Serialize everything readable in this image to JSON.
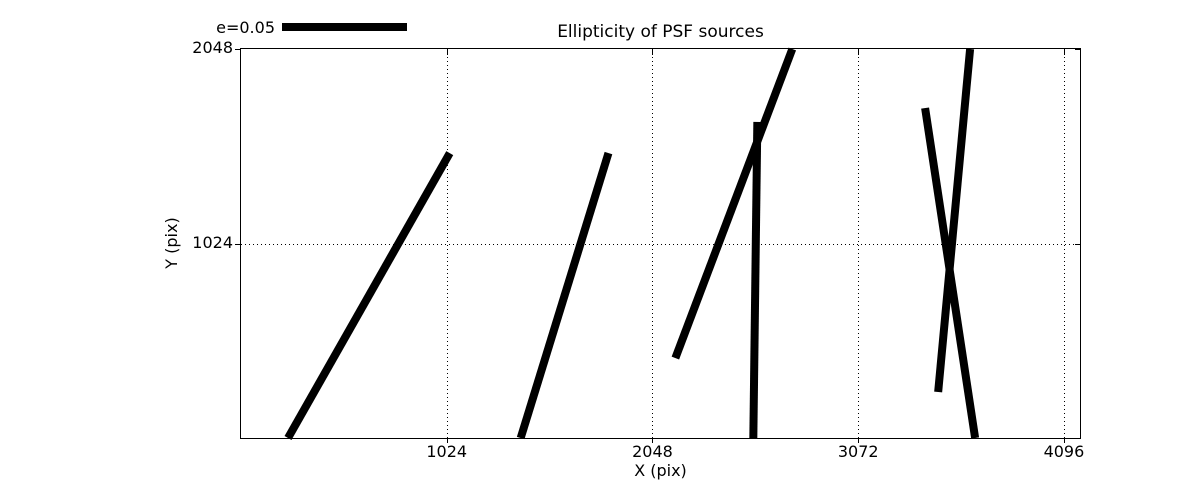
{
  "chart_data": {
    "type": "line",
    "subtype": "ellipticity-whisker-segments",
    "title": "Ellipticity of PSF sources",
    "xlabel": "X (pix)",
    "ylabel": "Y (pix)",
    "xlim": [
      0,
      4176
    ],
    "ylim": [
      0,
      2048
    ],
    "grid": "dotted",
    "legend": {
      "label": "e=0.05",
      "position": "top-left",
      "bar_length_pix_units": 620
    },
    "colors": {
      "line": "#000000",
      "grid": "#000000",
      "background": "#ffffff"
    },
    "line_width": 8,
    "xticks": [
      {
        "value": 1024,
        "label": "1024"
      },
      {
        "value": 2048,
        "label": "2048"
      },
      {
        "value": 3072,
        "label": "3072"
      },
      {
        "value": 4096,
        "label": "4096"
      }
    ],
    "yticks": [
      {
        "value": 1024,
        "label": "1024"
      },
      {
        "value": 2048,
        "label": "2048"
      }
    ],
    "series": [
      {
        "name": "psf-source-ellipticity-whiskers",
        "segments": [
          {
            "x1": 234,
            "y1": 0,
            "x2": 1039,
            "y2": 1500
          },
          {
            "x1": 1392,
            "y1": 0,
            "x2": 1829,
            "y2": 1500
          },
          {
            "x1": 2162,
            "y1": 421,
            "x2": 2744,
            "y2": 2048
          },
          {
            "x1": 2550,
            "y1": 0,
            "x2": 2570,
            "y2": 1664
          },
          {
            "x1": 3654,
            "y1": 0,
            "x2": 3405,
            "y2": 1737
          },
          {
            "x1": 3470,
            "y1": 242,
            "x2": 3629,
            "y2": 2048
          }
        ]
      }
    ]
  }
}
